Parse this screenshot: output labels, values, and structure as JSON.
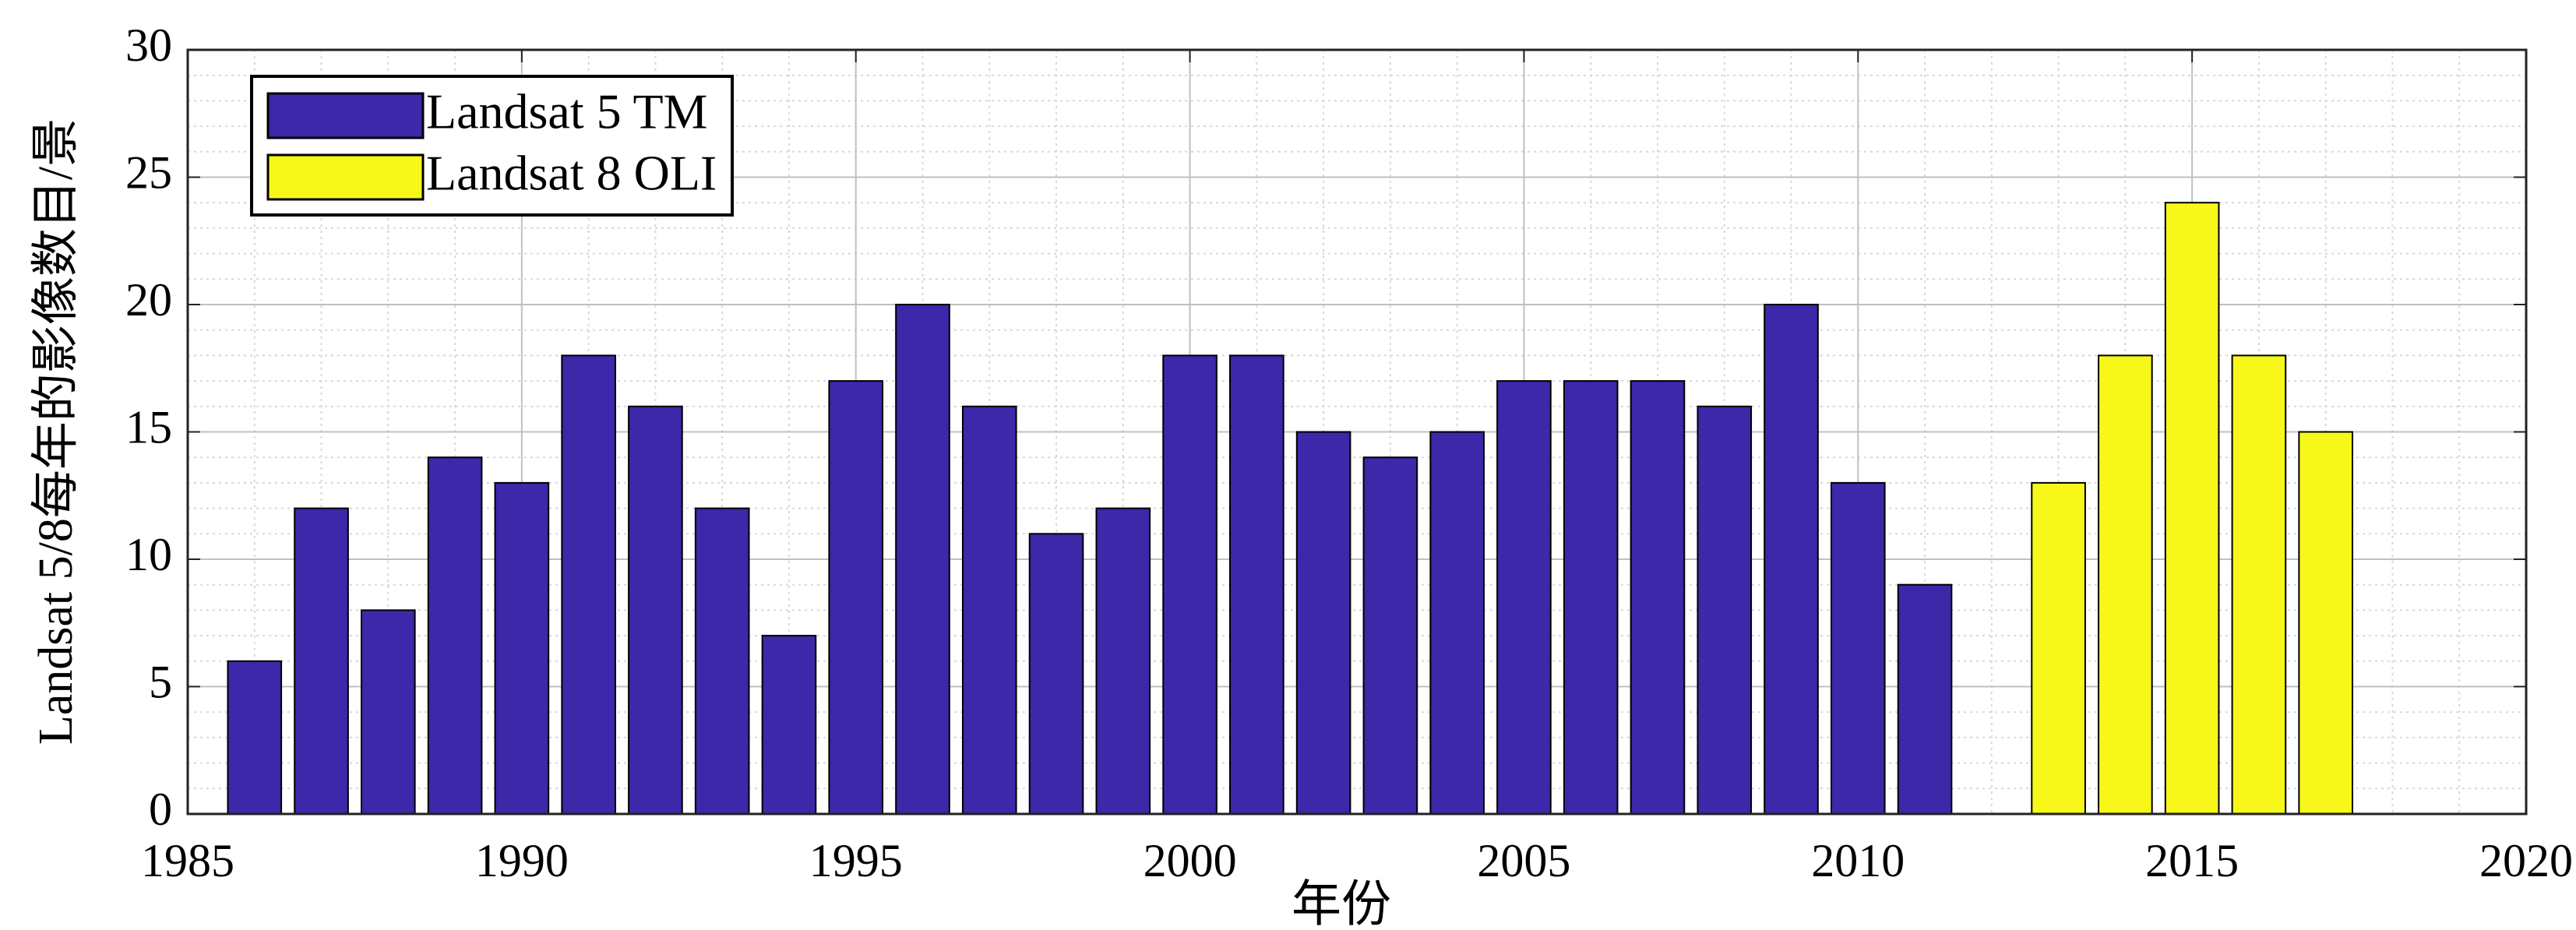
{
  "chart_data": {
    "type": "bar",
    "x_label": "年份",
    "y_label": "Landsat 5/8每年的影像数目/景",
    "x": [
      1986,
      1987,
      1988,
      1989,
      1990,
      1991,
      1992,
      1993,
      1994,
      1995,
      1996,
      1997,
      1998,
      1999,
      2000,
      2001,
      2002,
      2003,
      2004,
      2005,
      2006,
      2007,
      2008,
      2009,
      2010,
      2011,
      2012,
      2013,
      2014,
      2015,
      2016,
      2017
    ],
    "series": [
      {
        "name": "Landsat 5 TM",
        "color": "#3c28a8",
        "values": [
          6,
          12,
          8,
          14,
          13,
          18,
          16,
          12,
          7,
          17,
          20,
          16,
          11,
          12,
          18,
          18,
          15,
          14,
          15,
          17,
          17,
          17,
          16,
          20,
          13,
          9,
          null,
          null,
          null,
          null,
          null,
          null
        ]
      },
      {
        "name": "Landsat 8 OLI",
        "color": "#f7f71a",
        "values": [
          null,
          null,
          null,
          null,
          null,
          null,
          null,
          null,
          null,
          null,
          null,
          null,
          null,
          null,
          null,
          null,
          null,
          null,
          null,
          null,
          null,
          null,
          null,
          null,
          null,
          null,
          null,
          13,
          18,
          24,
          18,
          15
        ]
      }
    ],
    "xlim": [
      1985,
      2020
    ],
    "xticks": [
      1985,
      1990,
      1995,
      2000,
      2005,
      2010,
      2015,
      2020
    ],
    "ylim": [
      0,
      30
    ],
    "yticks": [
      0,
      5,
      10,
      15,
      20,
      25,
      30
    ],
    "grid": true,
    "minor_grid": true,
    "legend": "upper-left"
  }
}
